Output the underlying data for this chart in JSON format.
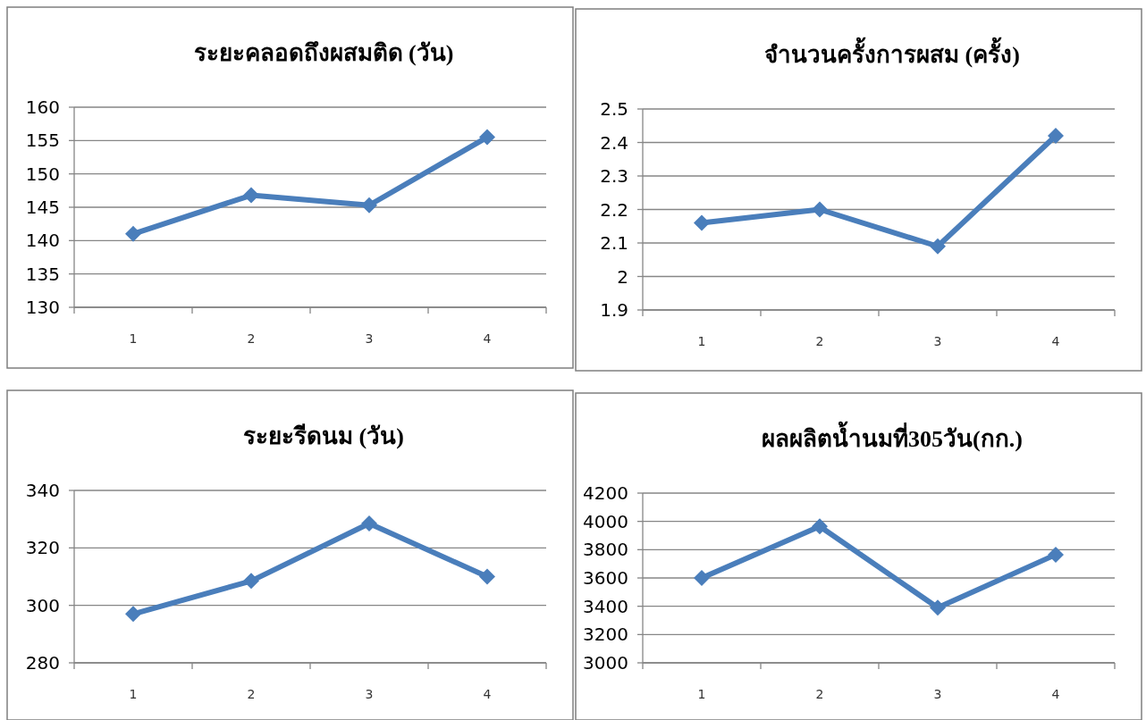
{
  "chart_data": [
    {
      "type": "line",
      "title": "ระยะคลอดถึงผสมติด (วัน)",
      "categories": [
        "1",
        "2",
        "3",
        "4"
      ],
      "series": [
        {
          "color": "#4a7ebb",
          "values": [
            141,
            146.8,
            145.3,
            155.5
          ]
        }
      ],
      "ylim": [
        130,
        160
      ],
      "yticks": [
        130,
        135,
        140,
        145,
        150,
        155,
        160
      ],
      "grid": "y",
      "marker": "diamond",
      "line_style": "solid"
    },
    {
      "type": "line",
      "title": "จำนวนครั้งการผสม (ครั้ง)",
      "categories": [
        "1",
        "2",
        "3",
        "4"
      ],
      "series": [
        {
          "color": "#4a7ebb",
          "values": [
            2.16,
            2.2,
            2.09,
            2.42
          ]
        }
      ],
      "ylim": [
        1.9,
        2.5
      ],
      "yticks": [
        1.9,
        2,
        2.1,
        2.2,
        2.3,
        2.4,
        2.5
      ],
      "grid": "y",
      "marker": "diamond",
      "line_style": "solid"
    },
    {
      "type": "line",
      "title": "ระยะรีดนม (วัน)",
      "categories": [
        "1",
        "2",
        "3",
        "4"
      ],
      "series": [
        {
          "color": "#4a7ebb",
          "values": [
            297,
            308.5,
            328.5,
            310
          ]
        }
      ],
      "ylim": [
        280,
        340
      ],
      "yticks": [
        280,
        300,
        320,
        340
      ],
      "grid": "y",
      "marker": "diamond",
      "line_style": "solid"
    },
    {
      "type": "line",
      "title": "ผลผลิตน้ำนมที่305วัน(กก.)",
      "categories": [
        "1",
        "2",
        "3",
        "4"
      ],
      "series": [
        {
          "color": "#4a7ebb",
          "values": [
            3600,
            3965,
            3390,
            3765
          ]
        }
      ],
      "ylim": [
        3000,
        4200
      ],
      "yticks": [
        3000,
        3200,
        3400,
        3600,
        3800,
        4000,
        4200
      ],
      "grid": "y",
      "marker": "diamond",
      "line_style": "solid"
    }
  ]
}
